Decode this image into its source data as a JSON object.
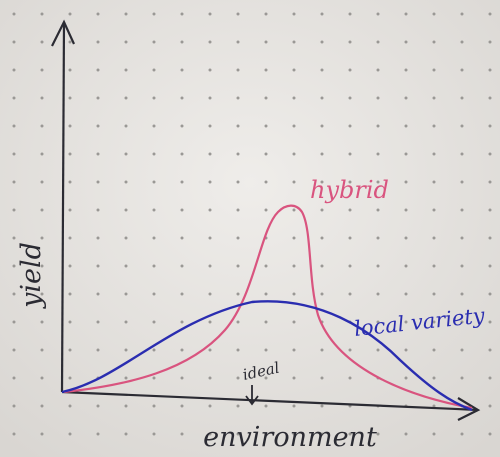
{
  "axes": {
    "y_label": "yield",
    "x_label": "environment"
  },
  "curves": {
    "hybrid": "hybrid",
    "local_variety": "local variety"
  },
  "marker": {
    "ideal": "ideal"
  }
}
